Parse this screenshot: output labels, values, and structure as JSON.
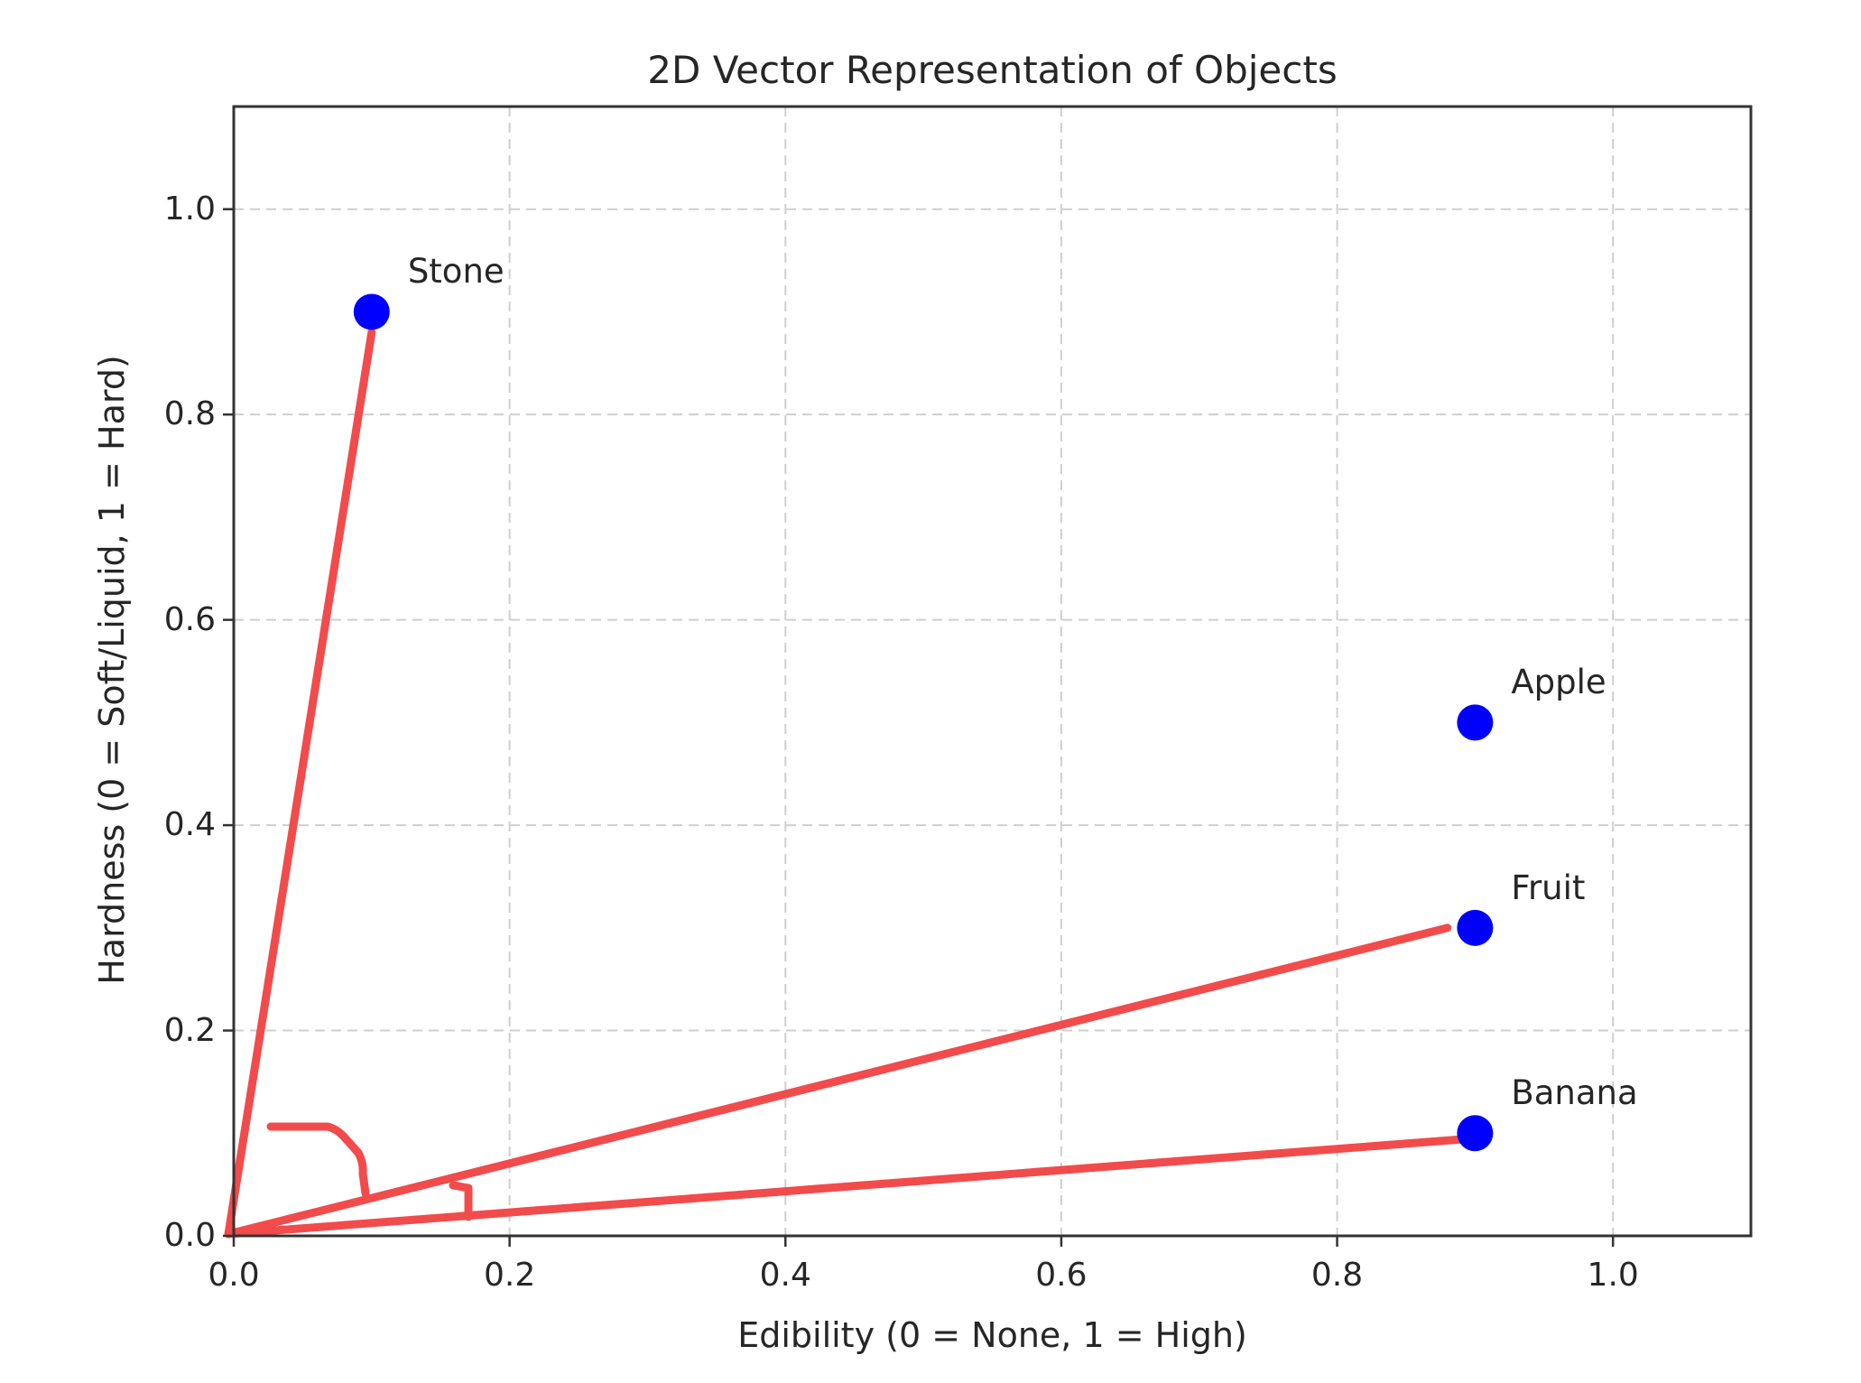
{
  "chart_data": {
    "type": "scatter",
    "title": "2D Vector Representation of Objects",
    "xlabel": "Edibility (0 = None, 1 = High)",
    "ylabel": "Hardness (0 = Soft/Liquid, 1 = Hard)",
    "xlim": [
      0,
      1.1
    ],
    "ylim": [
      0,
      1.1
    ],
    "grid": true,
    "legend": null,
    "x_ticks": [
      0.0,
      0.2,
      0.4,
      0.6,
      0.8,
      1.0
    ],
    "x_tick_labels": [
      "0.0",
      "0.2",
      "0.4",
      "0.6",
      "0.8",
      "1.0"
    ],
    "y_ticks": [
      0.0,
      0.2,
      0.4,
      0.6,
      0.8,
      1.0
    ],
    "y_tick_labels": [
      "0.0",
      "0.2",
      "0.4",
      "0.6",
      "0.8",
      "1.0"
    ],
    "points": [
      {
        "label": "Stone",
        "x": 0.1,
        "y": 0.9
      },
      {
        "label": "Apple",
        "x": 0.9,
        "y": 0.5
      },
      {
        "label": "Fruit",
        "x": 0.9,
        "y": 0.3
      },
      {
        "label": "Banana",
        "x": 0.9,
        "y": 0.1
      }
    ],
    "annotations": {
      "vectors_from_origin": [
        {
          "to": "Stone",
          "x": 0.1,
          "y": 0.88
        },
        {
          "to": "Fruit",
          "x": 0.88,
          "y": 0.3
        },
        {
          "to": "Banana",
          "x": 0.9,
          "y": 0.095
        }
      ],
      "angle_marks": [
        {
          "between": [
            "Stone",
            "Fruit"
          ],
          "type": "large-arc"
        },
        {
          "between": [
            "Fruit",
            "Banana"
          ],
          "type": "small-arc"
        }
      ]
    },
    "colors": {
      "point": "#0000ff",
      "vector": "#f24b4b",
      "grid": "#cfcfcf",
      "axes": "#333333"
    }
  }
}
